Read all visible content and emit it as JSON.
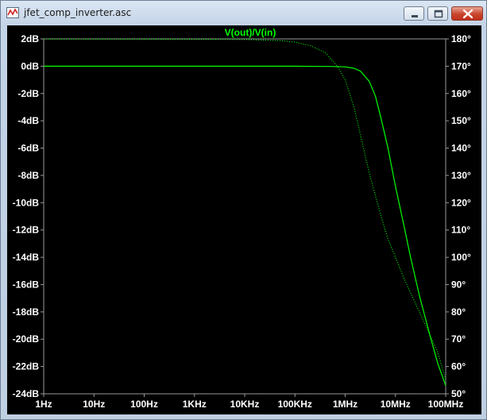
{
  "window": {
    "title": "jfet_comp_inverter.asc",
    "icon": "ltspice-waveform-icon",
    "controls": [
      "minimize-icon",
      "maximize-icon",
      "close-icon"
    ]
  },
  "chart_data": {
    "type": "line",
    "title": "V(out)/V(in)",
    "title_color": "#00ff00",
    "background": "#000000",
    "trace_color": "#00ff00",
    "x_scale": "log",
    "x_range_hz": [
      1,
      100000000
    ],
    "x_ticks": [
      {
        "value": 1,
        "label": "1Hz"
      },
      {
        "value": 10,
        "label": "10Hz"
      },
      {
        "value": 100,
        "label": "100Hz"
      },
      {
        "value": 1000,
        "label": "1KHz"
      },
      {
        "value": 10000,
        "label": "10KHz"
      },
      {
        "value": 100000,
        "label": "100KHz"
      },
      {
        "value": 1000000,
        "label": "1MHz"
      },
      {
        "value": 10000000,
        "label": "10MHz"
      },
      {
        "value": 100000000,
        "label": "100MHz"
      }
    ],
    "y_left": {
      "unit": "dB",
      "range": [
        -24,
        2
      ],
      "ticks": [
        {
          "value": 2,
          "label": "2dB"
        },
        {
          "value": 0,
          "label": "0dB"
        },
        {
          "value": -2,
          "label": "-2dB"
        },
        {
          "value": -4,
          "label": "-4dB"
        },
        {
          "value": -6,
          "label": "-6dB"
        },
        {
          "value": -8,
          "label": "-8dB"
        },
        {
          "value": -10,
          "label": "-10dB"
        },
        {
          "value": -12,
          "label": "-12dB"
        },
        {
          "value": -14,
          "label": "-14dB"
        },
        {
          "value": -16,
          "label": "-16dB"
        },
        {
          "value": -18,
          "label": "-18dB"
        },
        {
          "value": -20,
          "label": "-20dB"
        },
        {
          "value": -22,
          "label": "-22dB"
        },
        {
          "value": -24,
          "label": "-24dB"
        }
      ]
    },
    "y_right": {
      "unit": "degrees",
      "range": [
        50,
        180
      ],
      "ticks": [
        {
          "value": 180,
          "label": "180°"
        },
        {
          "value": 170,
          "label": "170°"
        },
        {
          "value": 160,
          "label": "160°"
        },
        {
          "value": 150,
          "label": "150°"
        },
        {
          "value": 140,
          "label": "140°"
        },
        {
          "value": 130,
          "label": "130°"
        },
        {
          "value": 120,
          "label": "120°"
        },
        {
          "value": 110,
          "label": "110°"
        },
        {
          "value": 100,
          "label": "100°"
        },
        {
          "value": 90,
          "label": "90°"
        },
        {
          "value": 80,
          "label": "80°"
        },
        {
          "value": 70,
          "label": "70°"
        },
        {
          "value": 60,
          "label": "60°"
        },
        {
          "value": 50,
          "label": "50°"
        }
      ]
    },
    "grid": false,
    "series": [
      {
        "quantity": "magnitude",
        "axis": "left",
        "style": "solid",
        "points": [
          [
            1,
            0
          ],
          [
            100,
            0
          ],
          [
            10000,
            0
          ],
          [
            100000,
            0
          ],
          [
            500000,
            -0.02
          ],
          [
            1000000,
            -0.05
          ],
          [
            1500000,
            -0.15
          ],
          [
            2000000,
            -0.35
          ],
          [
            3000000,
            -1.1
          ],
          [
            4000000,
            -2.2
          ],
          [
            5000000,
            -3.6
          ],
          [
            7000000,
            -5.9
          ],
          [
            10000000,
            -8.8
          ],
          [
            15000000,
            -11.8
          ],
          [
            20000000,
            -14.0
          ],
          [
            30000000,
            -16.8
          ],
          [
            50000000,
            -19.9
          ],
          [
            70000000,
            -21.8
          ],
          [
            100000000,
            -23.4
          ]
        ]
      },
      {
        "quantity": "phase",
        "axis": "right",
        "style": "dotted",
        "points": [
          [
            1,
            180
          ],
          [
            10000,
            179.8
          ],
          [
            50000,
            179.4
          ],
          [
            100000,
            178.8
          ],
          [
            200000,
            177.6
          ],
          [
            400000,
            175
          ],
          [
            700000,
            170
          ],
          [
            1000000,
            165
          ],
          [
            1500000,
            155
          ],
          [
            2000000,
            145
          ],
          [
            3000000,
            131
          ],
          [
            5000000,
            116
          ],
          [
            7000000,
            107
          ],
          [
            10000000,
            100
          ],
          [
            15000000,
            92
          ],
          [
            20000000,
            87
          ],
          [
            30000000,
            80
          ],
          [
            50000000,
            71
          ],
          [
            70000000,
            65
          ],
          [
            100000000,
            55
          ]
        ]
      }
    ]
  }
}
